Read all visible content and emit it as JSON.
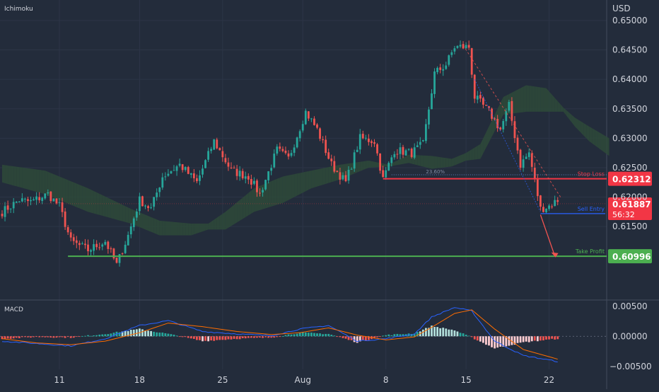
{
  "indicator_label": "Ichimoku",
  "currency_label": "USD",
  "macd_label": "MACD",
  "colors": {
    "background": "#232c3b",
    "up": "#26a69a",
    "down": "#ef5350",
    "cloud_green": "#2e4a3a",
    "cloud_red": "#4a2e36",
    "stop_loss": "#f23645",
    "take_profit": "#4caf50",
    "sell_entry": "#2962ff",
    "macd_line": "#2962ff",
    "signal_line": "#ff6d00"
  },
  "chart_data": {
    "type": "candlestick",
    "price_axis": {
      "range": [
        0.603,
        0.653
      ],
      "ticks": [
        "0.65000",
        "0.64500",
        "0.64000",
        "0.63500",
        "0.63000",
        "0.62500",
        "0.62000",
        "0.61500"
      ]
    },
    "macd_axis": {
      "range": [
        -0.0055,
        0.0058
      ],
      "ticks": [
        "0.00500",
        "0.00000",
        "−0.00500"
      ]
    },
    "x_axis": {
      "tick_labels": [
        {
          "label": "11",
          "index": 20
        },
        {
          "label": "18",
          "index": 48
        },
        {
          "label": "25",
          "index": 77
        },
        {
          "label": "Aug",
          "index": 105
        },
        {
          "label": "8",
          "index": 134
        },
        {
          "label": "15",
          "index": 162
        },
        {
          "label": "22",
          "index": 191
        }
      ],
      "bar_count": 195,
      "space_after": 20
    },
    "levels": [
      {
        "name": "Stop Loss",
        "price": 0.62312,
        "price_label": "0.62312",
        "start_index": 133
      },
      {
        "name": "Sell Entry",
        "price": 0.6172,
        "start_index": 188
      },
      {
        "name": "Take Profit",
        "price": 0.60996,
        "price_label": "0.60996",
        "start_index": 23
      }
    ],
    "fib_label": "23.60%",
    "fib_price": 0.6238,
    "current_price": {
      "price": 0.61887,
      "label": "0.61887",
      "countdown": "56:32"
    },
    "key_points": [
      {
        "i": 0,
        "p": 0.6175
      },
      {
        "i": 6,
        "p": 0.6195
      },
      {
        "i": 10,
        "p": 0.6192
      },
      {
        "i": 16,
        "p": 0.6205
      },
      {
        "i": 20,
        "p": 0.6185
      },
      {
        "i": 24,
        "p": 0.6125
      },
      {
        "i": 30,
        "p": 0.611
      },
      {
        "i": 36,
        "p": 0.6125
      },
      {
        "i": 40,
        "p": 0.6085
      },
      {
        "i": 44,
        "p": 0.6135
      },
      {
        "i": 48,
        "p": 0.6195
      },
      {
        "i": 52,
        "p": 0.618
      },
      {
        "i": 56,
        "p": 0.6235
      },
      {
        "i": 62,
        "p": 0.6255
      },
      {
        "i": 68,
        "p": 0.6225
      },
      {
        "i": 74,
        "p": 0.6295
      },
      {
        "i": 80,
        "p": 0.6245
      },
      {
        "i": 86,
        "p": 0.6235
      },
      {
        "i": 90,
        "p": 0.6205
      },
      {
        "i": 96,
        "p": 0.628
      },
      {
        "i": 100,
        "p": 0.6265
      },
      {
        "i": 106,
        "p": 0.6345
      },
      {
        "i": 110,
        "p": 0.6315
      },
      {
        "i": 115,
        "p": 0.6255
      },
      {
        "i": 120,
        "p": 0.6225
      },
      {
        "i": 125,
        "p": 0.63
      },
      {
        "i": 130,
        "p": 0.6295
      },
      {
        "i": 133,
        "p": 0.623
      },
      {
        "i": 137,
        "p": 0.628
      },
      {
        "i": 143,
        "p": 0.6275
      },
      {
        "i": 147,
        "p": 0.629
      },
      {
        "i": 151,
        "p": 0.641
      },
      {
        "i": 155,
        "p": 0.6425
      },
      {
        "i": 158,
        "p": 0.6455
      },
      {
        "i": 163,
        "p": 0.6455
      },
      {
        "i": 165,
        "p": 0.637
      },
      {
        "i": 170,
        "p": 0.6345
      },
      {
        "i": 174,
        "p": 0.6315
      },
      {
        "i": 177,
        "p": 0.6355
      },
      {
        "i": 181,
        "p": 0.6255
      },
      {
        "i": 184,
        "p": 0.6275
      },
      {
        "i": 188,
        "p": 0.618
      },
      {
        "i": 191,
        "p": 0.6185
      },
      {
        "i": 194,
        "p": 0.6195
      }
    ],
    "cloud": [
      {
        "i": 0,
        "a": 0.6255,
        "b": 0.6225
      },
      {
        "i": 15,
        "a": 0.6245,
        "b": 0.6205
      },
      {
        "i": 30,
        "a": 0.6215,
        "b": 0.6175
      },
      {
        "i": 45,
        "a": 0.618,
        "b": 0.6155
      },
      {
        "i": 55,
        "a": 0.616,
        "b": 0.6135
      },
      {
        "i": 66,
        "a": 0.6155,
        "b": 0.6135
      },
      {
        "i": 72,
        "a": 0.6155,
        "b": 0.6145
      },
      {
        "i": 78,
        "a": 0.6175,
        "b": 0.6145
      },
      {
        "i": 88,
        "a": 0.6215,
        "b": 0.6175
      },
      {
        "i": 98,
        "a": 0.6235,
        "b": 0.619
      },
      {
        "i": 108,
        "a": 0.6245,
        "b": 0.6215
      },
      {
        "i": 118,
        "a": 0.6255,
        "b": 0.623
      },
      {
        "i": 128,
        "a": 0.6262,
        "b": 0.625
      },
      {
        "i": 135,
        "a": 0.6255,
        "b": 0.6252
      },
      {
        "i": 142,
        "a": 0.6272,
        "b": 0.6258
      },
      {
        "i": 150,
        "a": 0.627,
        "b": 0.6248
      },
      {
        "i": 157,
        "a": 0.6265,
        "b": 0.6252
      },
      {
        "i": 162,
        "a": 0.6275,
        "b": 0.6262
      },
      {
        "i": 167,
        "a": 0.629,
        "b": 0.6265
      },
      {
        "i": 175,
        "a": 0.637,
        "b": 0.634
      },
      {
        "i": 183,
        "a": 0.639,
        "b": 0.6345
      },
      {
        "i": 190,
        "a": 0.6385,
        "b": 0.6345
      },
      {
        "i": 196,
        "a": 0.6352,
        "b": 0.6345
      },
      {
        "i": 200,
        "a": 0.6335,
        "b": 0.632
      },
      {
        "i": 205,
        "a": 0.632,
        "b": 0.6295
      },
      {
        "i": 212,
        "a": 0.63,
        "b": 0.627
      }
    ],
    "macd_keys": [
      {
        "i": 0,
        "m": -0.0008,
        "s": -0.0004
      },
      {
        "i": 12,
        "m": -0.0012,
        "s": -0.0011
      },
      {
        "i": 24,
        "m": -0.0016,
        "s": -0.0014
      },
      {
        "i": 36,
        "m": -0.0004,
        "s": -0.0008
      },
      {
        "i": 48,
        "m": 0.0018,
        "s": 0.0006
      },
      {
        "i": 58,
        "m": 0.0026,
        "s": 0.0022
      },
      {
        "i": 70,
        "m": 0.0008,
        "s": 0.0016
      },
      {
        "i": 82,
        "m": 0.0004,
        "s": 0.0008
      },
      {
        "i": 94,
        "m": 0.0001,
        "s": 0.0003
      },
      {
        "i": 104,
        "m": 0.0012,
        "s": 0.0006
      },
      {
        "i": 114,
        "m": 0.0018,
        "s": 0.0014
      },
      {
        "i": 124,
        "m": -0.0008,
        "s": 0.0002
      },
      {
        "i": 134,
        "m": -0.0004,
        "s": -0.0006
      },
      {
        "i": 144,
        "m": 0.0004,
        "s": -0.0001
      },
      {
        "i": 150,
        "m": 0.0032,
        "s": 0.0015
      },
      {
        "i": 158,
        "m": 0.0048,
        "s": 0.0038
      },
      {
        "i": 164,
        "m": 0.0042,
        "s": 0.0044
      },
      {
        "i": 172,
        "m": -0.0008,
        "s": 0.0012
      },
      {
        "i": 182,
        "m": -0.0032,
        "s": -0.0022
      },
      {
        "i": 194,
        "m": -0.0042,
        "s": -0.0038
      }
    ]
  }
}
